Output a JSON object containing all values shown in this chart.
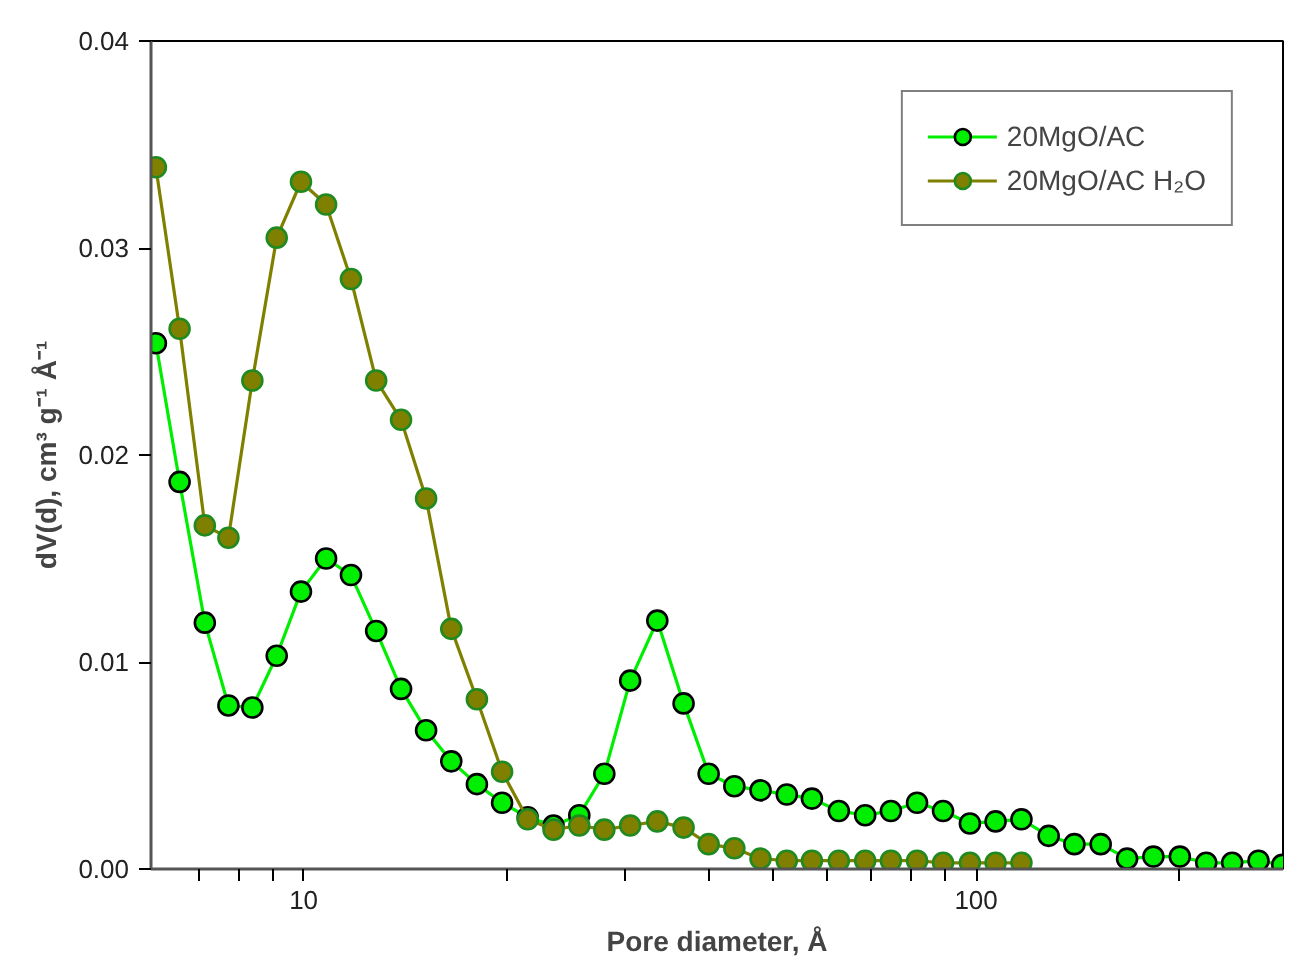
{
  "chart_data": {
    "type": "line",
    "xlabel": "Pore diameter, Å",
    "ylabel": "dV(d), cm³ g⁻¹ Å⁻¹",
    "log": "x",
    "marker": "circle",
    "line_style": "solid",
    "legend": "top right",
    "grid": false,
    "x": [
      6.03,
      6.54,
      7.13,
      7.73,
      8.39,
      9.12,
      9.91,
      10.8,
      11.76,
      12.82,
      13.96,
      15.21,
      16.58,
      18.1,
      19.73,
      21.54,
      23.53,
      25.7,
      28.0,
      30.59,
      33.57,
      36.73,
      40.02,
      43.7,
      47.8,
      52.3,
      57.0,
      62.5,
      68.4,
      74.7,
      81.7,
      89.3,
      97.9,
      106.9,
      116.8,
      128.2,
      140.0,
      153.2,
      167.7,
      183.5,
      200.9,
      219.9,
      240.3,
      263.0,
      285.3
    ],
    "xlim": [
      5.93,
      286
    ],
    "xticks": [
      {
        "value": 7,
        "label": null
      },
      {
        "value": 8,
        "label": null
      },
      {
        "value": 9,
        "label": null
      },
      10,
      {
        "value": 20,
        "label": null
      },
      {
        "value": 30,
        "label": null
      },
      {
        "value": 40,
        "label": null
      },
      {
        "value": 50,
        "label": null
      },
      {
        "value": 60,
        "label": null
      },
      {
        "value": 70,
        "label": null
      },
      {
        "value": 80,
        "label": null
      },
      {
        "value": 90,
        "label": null
      },
      100,
      {
        "value": 200,
        "label": null
      }
    ],
    "ylim": [
      0,
      0.04
    ],
    "yticks": [
      {
        "value": 0,
        "label": "0.00"
      },
      {
        "value": 0.01,
        "label": "0.01"
      },
      {
        "value": 0.02,
        "label": "0.02"
      },
      {
        "value": 0.03,
        "label": "0.03"
      },
      {
        "value": 0.04,
        "label": "0.04"
      }
    ],
    "series": [
      {
        "name": "20MgO/AC",
        "color": "#00ee00",
        "values": [
          0.0254,
          0.0187,
          0.0119,
          0.0079,
          0.0078,
          0.0103,
          0.0134,
          0.015,
          0.0142,
          0.0115,
          0.0087,
          0.0067,
          0.0052,
          0.0041,
          0.0032,
          0.0025,
          0.0021,
          0.0026,
          0.0046,
          0.0091,
          0.012,
          0.008,
          0.0046,
          0.004,
          0.0038,
          0.0036,
          0.0034,
          0.0028,
          0.0026,
          0.0028,
          0.0032,
          0.0028,
          0.0022,
          0.0023,
          0.0024,
          0.0016,
          0.0012,
          0.0012,
          0.0005,
          0.0006,
          0.0006,
          0.0003,
          0.0003,
          0.0004,
          0.0002
        ]
      },
      {
        "name": "20MgO/AC H₂O",
        "color": "#808000",
        "x": [
          6.03,
          6.54,
          7.13,
          7.73,
          8.39,
          9.12,
          9.91,
          10.8,
          11.76,
          12.82,
          13.96,
          15.21,
          16.58,
          18.1,
          19.73,
          21.54,
          23.53,
          25.7,
          28.0,
          30.59,
          33.57,
          36.73,
          40.02,
          43.7,
          47.8,
          52.3,
          57.0,
          62.5,
          68.4,
          74.7,
          81.7,
          89.3,
          97.9,
          106.9,
          116.8
        ],
        "values": [
          0.0339,
          0.0261,
          0.0166,
          0.016,
          0.0236,
          0.0305,
          0.0332,
          0.0321,
          0.0285,
          0.0236,
          0.0217,
          0.0179,
          0.0116,
          0.0082,
          0.0047,
          0.0024,
          0.0019,
          0.0021,
          0.0019,
          0.0021,
          0.0023,
          0.002,
          0.0012,
          0.001,
          0.0005,
          0.0004,
          0.0004,
          0.0004,
          0.0004,
          0.0004,
          0.0004,
          0.0003,
          0.0003,
          0.0003,
          0.0003
        ]
      }
    ]
  }
}
